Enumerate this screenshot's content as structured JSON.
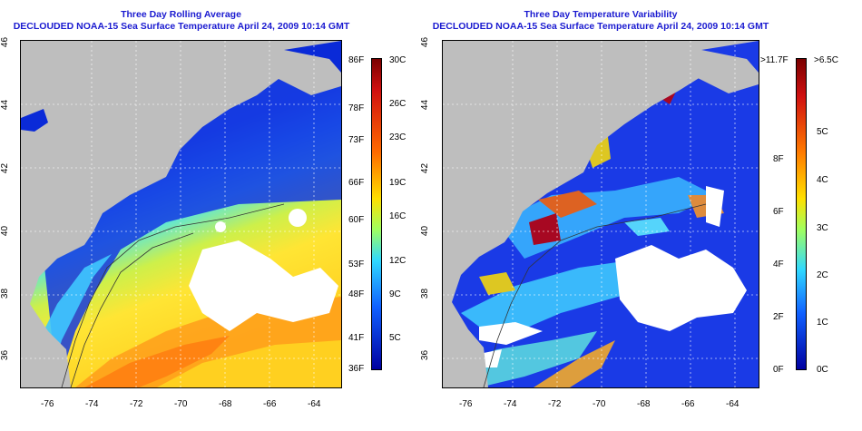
{
  "left_panel": {
    "title_line1": "Three Day Rolling Average",
    "title_line2": "DECLOUDED NOAA-15 Sea Surface Temperature April 24, 2009 10:14 GMT",
    "x_ticks": [
      "-76",
      "-74",
      "-72",
      "-70",
      "-68",
      "-66",
      "-64"
    ],
    "y_ticks": [
      "36",
      "38",
      "40",
      "42",
      "44",
      "46"
    ],
    "colorbar": {
      "left_labels": [
        "86F",
        "78F",
        "73F",
        "66F",
        "60F",
        "53F",
        "48F",
        "41F",
        "36F"
      ],
      "right_labels": [
        "30C",
        "26C",
        "23C",
        "19C",
        "16C",
        "12C",
        "9C",
        "5C"
      ],
      "colors": [
        "#b00000",
        "#ff7a00",
        "#ffe000",
        "#50e0ff",
        "#0000c0"
      ]
    }
  },
  "right_panel": {
    "title_line1": "Three Day Temperature Variability",
    "title_line2": "DECLOUDED NOAA-15 Sea Surface Temperature April 24, 2009 10:14 GMT",
    "x_ticks": [
      "-76",
      "-74",
      "-72",
      "-70",
      "-68",
      "-66",
      "-64"
    ],
    "y_ticks": [
      "36",
      "38",
      "40",
      "42",
      "44",
      "46"
    ],
    "colorbar": {
      "left_labels": [
        ">11.7F",
        "8F",
        "6F",
        "4F",
        "2F",
        "0F"
      ],
      "right_labels": [
        ">6.5C",
        "5C",
        "4C",
        "3C",
        "2C",
        "1C",
        "0C"
      ],
      "colors": [
        "#b00000",
        "#ff7a00",
        "#ffe000",
        "#50e0ff",
        "#0000c0"
      ]
    }
  },
  "colors": {
    "title": "#1a1ad0",
    "land": "#bebebe",
    "cold_water": "#0a2ad8",
    "warm_water": "#ff9a1a"
  }
}
